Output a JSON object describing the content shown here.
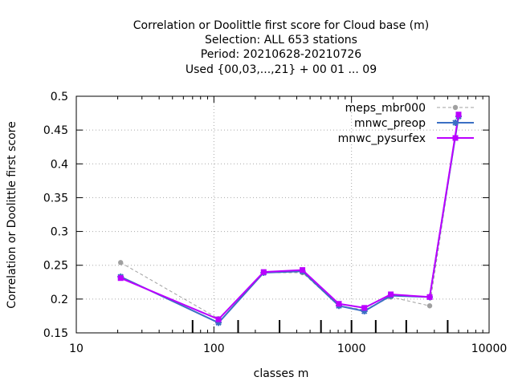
{
  "chart_data": {
    "type": "line",
    "title_lines": [
      "Correlation or Doolittle first score  for Cloud base (m)",
      "Selection: ALL    653 stations",
      "Period: 20210628-20210726",
      "Used {00,03,...,21} + 00 01 ... 09"
    ],
    "xlabel": "classes m",
    "ylabel": "Correlation or Doolittle first score",
    "x_scale": "log",
    "xlim": [
      10,
      10000
    ],
    "ylim": [
      0.15,
      0.5
    ],
    "x_ticks": [
      10,
      100,
      1000,
      10000
    ],
    "x_tick_labels": [
      "10",
      "100",
      "1000",
      "10000"
    ],
    "y_ticks": [
      0.15,
      0.2,
      0.25,
      0.3,
      0.35,
      0.4,
      0.45,
      0.5
    ],
    "y_tick_labels": [
      "0.15",
      "0.2",
      "0.25",
      "0.3",
      "0.35",
      "0.4",
      "0.45",
      "0.5"
    ],
    "grid": true,
    "legend_position": "top-right",
    "class_boundaries": [
      70,
      150,
      300,
      600,
      1000,
      1500,
      2500,
      5000
    ],
    "x": [
      21,
      108,
      230,
      440,
      810,
      1240,
      1930,
      3700,
      6000
    ],
    "series": [
      {
        "name": "meps_mbr000",
        "color": "#a0a0a0",
        "dash": "dashed",
        "marker": "circle",
        "values": [
          0.254,
          0.171,
          0.239,
          0.239,
          0.19,
          0.184,
          0.203,
          0.19,
          0.47
        ]
      },
      {
        "name": "mnwc_preop",
        "color": "#3b6fc4",
        "dash": "solid",
        "marker": "star",
        "values": [
          0.233,
          0.165,
          0.239,
          0.241,
          0.19,
          0.182,
          0.205,
          0.203,
          0.47
        ]
      },
      {
        "name": "mnwc_pysurfex",
        "color": "#bb00ff",
        "dash": "solid",
        "marker": "square",
        "values": [
          0.231,
          0.17,
          0.24,
          0.243,
          0.193,
          0.187,
          0.207,
          0.203,
          0.473
        ]
      }
    ]
  }
}
